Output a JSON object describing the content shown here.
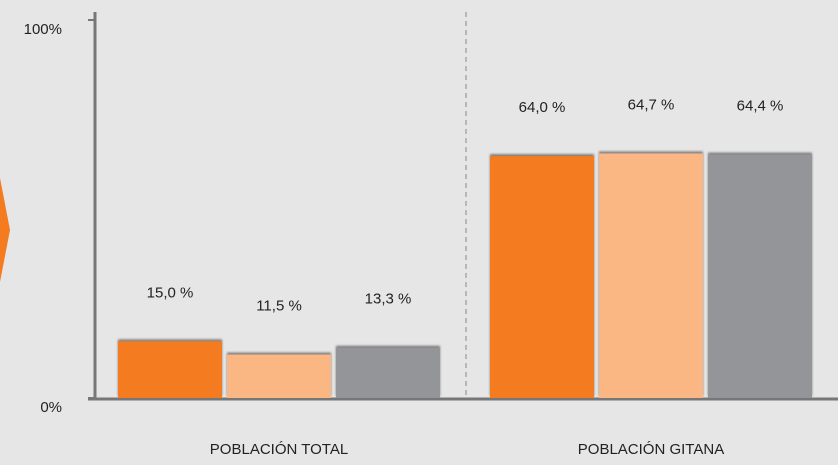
{
  "chart_data": {
    "type": "bar",
    "categories": [
      "POBLACIÓN TOTAL",
      "POBLACIÓN GITANA"
    ],
    "series": [
      {
        "color": "#f47b20",
        "values": [
          15.0,
          64.0
        ],
        "value_labels": [
          "15,0 %",
          "64,0 %"
        ]
      },
      {
        "color": "#fbb783",
        "values": [
          11.5,
          64.7
        ],
        "value_labels": [
          "11,5 %",
          "64,7 %"
        ]
      },
      {
        "color": "#939598",
        "values": [
          13.3,
          64.4
        ],
        "value_labels": [
          "13,3 %",
          "64,4 %"
        ]
      }
    ],
    "ylim": [
      0,
      100
    ],
    "yticks": [
      {
        "value": 0,
        "label": "0%"
      },
      {
        "value": 100,
        "label": "100%"
      }
    ]
  }
}
